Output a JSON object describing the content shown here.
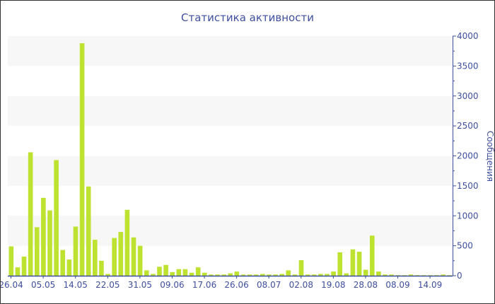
{
  "chart_data": {
    "type": "bar",
    "title": "Статистика активности",
    "ylabel": "Сообщения",
    "xlabel": "",
    "ylim": [
      0,
      4000
    ],
    "y_ticks": [
      0,
      500,
      1000,
      1500,
      2000,
      2500,
      3000,
      3500,
      4000
    ],
    "y_axis_side": "right",
    "grid": "alternating horizontal bands",
    "x_ticks": [
      {
        "index": 0,
        "label": "26.04"
      },
      {
        "index": 5,
        "label": "05.05"
      },
      {
        "index": 10,
        "label": "14.05"
      },
      {
        "index": 15,
        "label": "22.05"
      },
      {
        "index": 20,
        "label": "31.05"
      },
      {
        "index": 25,
        "label": "09.06"
      },
      {
        "index": 30,
        "label": "17.06"
      },
      {
        "index": 35,
        "label": "26.06"
      },
      {
        "index": 40,
        "label": "08.07"
      },
      {
        "index": 45,
        "label": "02.08"
      },
      {
        "index": 50,
        "label": "19.08"
      },
      {
        "index": 55,
        "label": "28.08"
      },
      {
        "index": 60,
        "label": "08.09"
      },
      {
        "index": 65,
        "label": "14.09"
      }
    ],
    "values": [
      490,
      140,
      320,
      2060,
      810,
      1300,
      1090,
      1930,
      430,
      270,
      820,
      3880,
      1490,
      600,
      250,
      30,
      630,
      730,
      1100,
      640,
      500,
      90,
      30,
      150,
      180,
      60,
      110,
      110,
      50,
      140,
      50,
      20,
      20,
      20,
      40,
      70,
      20,
      20,
      20,
      30,
      20,
      20,
      30,
      90,
      20,
      260,
      20,
      20,
      30,
      30,
      70,
      390,
      40,
      440,
      400,
      100,
      670,
      70,
      20,
      20,
      10,
      10,
      20,
      10,
      10,
      10,
      10,
      20,
      10
    ],
    "colors": {
      "bar": "#bde22f",
      "axis": "#3e4f9e",
      "band": "#f7f7f7"
    }
  }
}
